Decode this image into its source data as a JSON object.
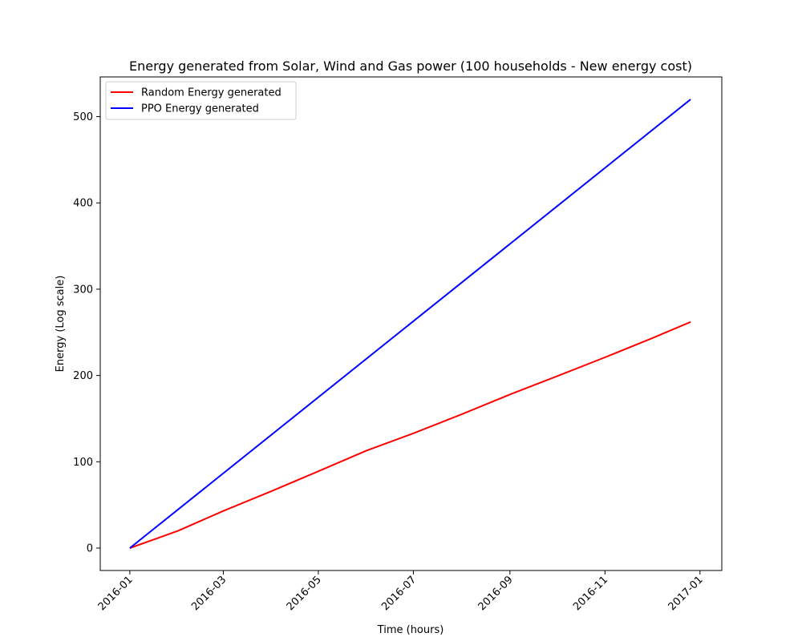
{
  "chart_data": {
    "type": "line",
    "title": "Energy generated from Solar, Wind and Gas power (100 households - New energy cost)",
    "xlabel": "Time (hours)",
    "ylabel": "Energy (Log scale)",
    "x_tick_labels": [
      "2016-01",
      "2016-03",
      "2016-05",
      "2016-07",
      "2016-09",
      "2016-11",
      "2017-01"
    ],
    "y_tick_labels": [
      "0",
      "100",
      "200",
      "300",
      "400",
      "500"
    ],
    "y_ticks": [
      0,
      100,
      200,
      300,
      400,
      500
    ],
    "xlim": [
      "2015-12-13",
      "2017-01-15"
    ],
    "ylim": [
      -26,
      546
    ],
    "grid": false,
    "legend_position": "top-left",
    "series": [
      {
        "name": "Random Energy generated",
        "color": "#ff0000",
        "points": [
          [
            "2016-01-01",
            0
          ],
          [
            "2016-01-15",
            9
          ],
          [
            "2016-02-01",
            20
          ],
          [
            "2016-03-01",
            43
          ],
          [
            "2016-04-01",
            66
          ],
          [
            "2016-05-01",
            89
          ],
          [
            "2016-06-01",
            113
          ],
          [
            "2016-07-01",
            133
          ],
          [
            "2016-08-01",
            155
          ],
          [
            "2016-09-01",
            178
          ],
          [
            "2016-10-01",
            199
          ],
          [
            "2016-11-01",
            221
          ],
          [
            "2016-12-01",
            243
          ],
          [
            "2016-12-26",
            262
          ]
        ]
      },
      {
        "name": "PPO Energy generated",
        "color": "#0000ff",
        "points": [
          [
            "2016-01-01",
            0
          ],
          [
            "2016-12-26",
            520
          ]
        ]
      }
    ]
  }
}
